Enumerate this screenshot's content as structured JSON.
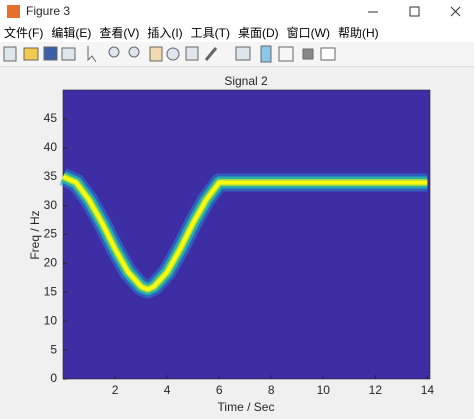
{
  "window": {
    "title": "Figure 3"
  },
  "menu": [
    "文件(F)",
    "编辑(E)",
    "查看(V)",
    "插入(I)",
    "工具(T)",
    "桌面(D)",
    "窗口(W)",
    "帮助(H)"
  ],
  "chart_data": {
    "type": "line",
    "title": "Signal 2",
    "x_label": "Time / Sec",
    "y_label": "Freq / Hz",
    "x": [
      0,
      0.5,
      1,
      1.5,
      2,
      2.5,
      3,
      3.25,
      3.5,
      4,
      4.5,
      5,
      5.5,
      6,
      7,
      8,
      9,
      10,
      11,
      12,
      13,
      14
    ],
    "series": [
      {
        "name": "Signal 2",
        "color": "#f9fb0e",
        "values": [
          35,
          34,
          31,
          27,
          22.5,
          18.5,
          16,
          15.5,
          16,
          18.5,
          22.5,
          27,
          31,
          34,
          34,
          34,
          34,
          34,
          34,
          34,
          34,
          34
        ]
      }
    ],
    "background": "#3e2ea6",
    "xlim": [
      0,
      14.1
    ],
    "xticks": [
      2,
      4,
      6,
      8,
      10,
      12,
      14
    ],
    "ylim": [
      0,
      50
    ],
    "yticks": [
      0,
      5,
      10,
      15,
      20,
      25,
      30,
      35,
      40,
      45
    ]
  }
}
